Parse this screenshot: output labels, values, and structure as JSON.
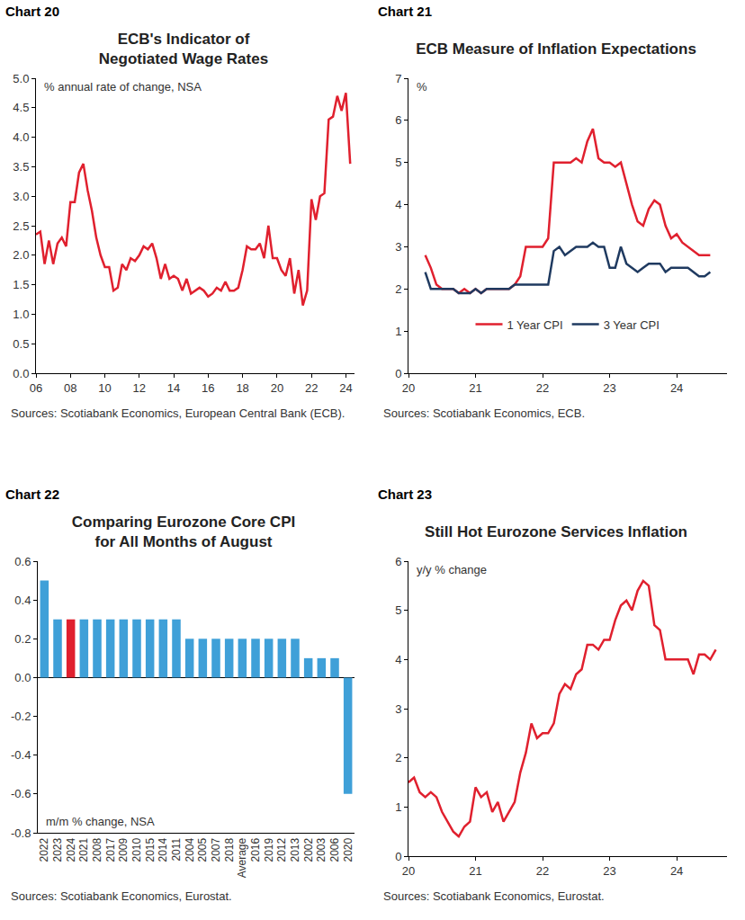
{
  "chart_data": [
    {
      "type": "line",
      "label": "Chart 20",
      "title": "ECB's Indicator of\nNegotiated Wage Rates",
      "ylabel": "% annual rate of change, NSA",
      "source": "Sources: Scotiabank Economics, European Central Bank (ECB).",
      "color": "#e0202e",
      "grid": false,
      "x": [
        2006,
        2006.25,
        2006.5,
        2006.75,
        2007,
        2007.25,
        2007.5,
        2007.75,
        2008,
        2008.25,
        2008.5,
        2008.75,
        2009,
        2009.25,
        2009.5,
        2009.75,
        2010,
        2010.25,
        2010.5,
        2010.75,
        2011,
        2011.25,
        2011.5,
        2011.75,
        2012,
        2012.25,
        2012.5,
        2012.75,
        2013,
        2013.25,
        2013.5,
        2013.75,
        2014,
        2014.25,
        2014.5,
        2014.75,
        2015,
        2015.25,
        2015.5,
        2015.75,
        2016,
        2016.25,
        2016.5,
        2016.75,
        2017,
        2017.25,
        2017.5,
        2017.75,
        2018,
        2018.25,
        2018.5,
        2018.75,
        2019,
        2019.25,
        2019.5,
        2019.75,
        2020,
        2020.25,
        2020.5,
        2020.75,
        2021,
        2021.25,
        2021.5,
        2021.75,
        2022,
        2022.25,
        2022.5,
        2022.75,
        2023,
        2023.25,
        2023.5,
        2023.75,
        2024,
        2024.25
      ],
      "values": [
        2.35,
        2.4,
        1.85,
        2.25,
        1.85,
        2.2,
        2.3,
        2.15,
        2.9,
        2.9,
        3.4,
        3.55,
        3.1,
        2.75,
        2.3,
        2.0,
        1.8,
        1.8,
        1.4,
        1.45,
        1.85,
        1.75,
        1.95,
        1.9,
        2.0,
        2.15,
        2.1,
        2.2,
        1.95,
        1.6,
        1.85,
        1.6,
        1.65,
        1.6,
        1.4,
        1.6,
        1.35,
        1.4,
        1.45,
        1.4,
        1.3,
        1.35,
        1.45,
        1.4,
        1.55,
        1.4,
        1.4,
        1.45,
        1.75,
        2.15,
        2.1,
        2.1,
        2.2,
        1.95,
        2.5,
        1.95,
        1.95,
        1.75,
        1.65,
        1.95,
        1.35,
        1.75,
        1.15,
        1.4,
        2.95,
        2.6,
        3.0,
        3.05,
        4.3,
        4.35,
        4.7,
        4.45,
        4.75,
        3.55
      ],
      "xlim": [
        2006,
        2024.5
      ],
      "xticks": [
        {
          "value": 2006,
          "label": "06"
        },
        {
          "value": 2008,
          "label": "08"
        },
        {
          "value": 2010,
          "label": "10"
        },
        {
          "value": 2012,
          "label": "12"
        },
        {
          "value": 2014,
          "label": "14"
        },
        {
          "value": 2016,
          "label": "16"
        },
        {
          "value": 2018,
          "label": "18"
        },
        {
          "value": 2020,
          "label": "20"
        },
        {
          "value": 2022,
          "label": "22"
        },
        {
          "value": 2024,
          "label": "24"
        }
      ],
      "ylim": [
        0,
        5
      ],
      "yticks": [
        {
          "value": 0,
          "label": "0.0"
        },
        0.5,
        {
          "value": 1,
          "label": "1.0"
        },
        1.5,
        {
          "value": 2,
          "label": "2.0"
        },
        2.5,
        {
          "value": 3,
          "label": "3.0"
        },
        3.5,
        {
          "value": 4,
          "label": "4.0"
        },
        4.5,
        {
          "value": 5,
          "label": "5.0"
        }
      ]
    },
    {
      "type": "line",
      "label": "Chart 21",
      "title": "ECB Measure of Inflation Expectations",
      "ylabel": "%",
      "source": "Sources: Scotiabank Economics, ECB.",
      "grid": false,
      "legend": "bottom",
      "x": [
        2020.25,
        2020.333,
        2020.417,
        2020.5,
        2020.583,
        2020.667,
        2020.75,
        2020.833,
        2020.917,
        2021,
        2021.083,
        2021.167,
        2021.25,
        2021.333,
        2021.417,
        2021.5,
        2021.583,
        2021.667,
        2021.75,
        2021.833,
        2021.917,
        2022,
        2022.083,
        2022.167,
        2022.25,
        2022.333,
        2022.417,
        2022.5,
        2022.583,
        2022.667,
        2022.75,
        2022.833,
        2022.917,
        2023,
        2023.083,
        2023.167,
        2023.25,
        2023.333,
        2023.417,
        2023.5,
        2023.583,
        2023.667,
        2023.75,
        2023.833,
        2023.917,
        2024,
        2024.083,
        2024.167,
        2024.25,
        2024.333,
        2024.417,
        2024.5
      ],
      "series": [
        {
          "name": "1 Year CPI",
          "color": "#e0202e",
          "values": [
            2.8,
            2.5,
            2.1,
            2.0,
            2.0,
            2.0,
            1.9,
            2.0,
            1.9,
            2.0,
            1.9,
            2.0,
            2.0,
            2.0,
            2.0,
            2.0,
            2.1,
            2.3,
            3.0,
            3.0,
            3.0,
            3.0,
            3.2,
            5.0,
            5.0,
            5.0,
            5.0,
            5.1,
            5.0,
            5.5,
            5.8,
            5.1,
            5.0,
            5.0,
            4.9,
            5.0,
            4.5,
            4.0,
            3.6,
            3.5,
            3.9,
            4.1,
            4.0,
            3.5,
            3.2,
            3.3,
            3.1,
            3.0,
            2.9,
            2.8,
            2.8,
            2.8
          ]
        },
        {
          "name": "3 Year CPI",
          "color": "#1f3a60",
          "values": [
            2.4,
            2.0,
            2.0,
            2.0,
            2.0,
            2.0,
            1.9,
            1.9,
            1.9,
            2.0,
            1.9,
            2.0,
            2.0,
            2.0,
            2.0,
            2.0,
            2.1,
            2.1,
            2.1,
            2.1,
            2.1,
            2.1,
            2.1,
            2.9,
            3.0,
            2.8,
            2.9,
            3.0,
            3.0,
            3.0,
            3.1,
            3.0,
            3.0,
            2.5,
            2.5,
            3.0,
            2.6,
            2.5,
            2.4,
            2.5,
            2.6,
            2.6,
            2.6,
            2.4,
            2.5,
            2.5,
            2.5,
            2.5,
            2.4,
            2.3,
            2.3,
            2.4
          ]
        }
      ],
      "xlim": [
        2020,
        2024.75
      ],
      "xticks": [
        {
          "value": 2020,
          "label": "20"
        },
        {
          "value": 2021,
          "label": "21"
        },
        {
          "value": 2022,
          "label": "22"
        },
        {
          "value": 2023,
          "label": "23"
        },
        {
          "value": 2024,
          "label": "24"
        }
      ],
      "ylim": [
        0,
        7
      ],
      "yticks": [
        0,
        1,
        2,
        3,
        4,
        5,
        6,
        7
      ]
    },
    {
      "type": "bar",
      "label": "Chart 22",
      "title": "Comparing Eurozone Core CPI\nfor All Months of August",
      "ylabel": "m/m % change, NSA",
      "source": "Sources: Scotiabank Economics, Eurostat.",
      "grid": false,
      "categories": [
        "2022",
        "2023",
        "2024",
        "2021",
        "2008",
        "2017",
        "2009",
        "2010",
        "2015",
        "2014",
        "2011",
        "2004",
        "2005",
        "2007",
        "2018",
        "Average",
        "2016",
        "2019",
        "2012",
        "2013",
        "2002",
        "2003",
        "2006",
        "2020"
      ],
      "values": [
        0.5,
        0.3,
        0.3,
        0.3,
        0.3,
        0.3,
        0.3,
        0.3,
        0.3,
        0.3,
        0.3,
        0.2,
        0.2,
        0.2,
        0.2,
        0.2,
        0.2,
        0.2,
        0.2,
        0.2,
        0.1,
        0.1,
        0.1,
        -0.6
      ],
      "colors": [
        "#3fa0d8",
        "#3fa0d8",
        "#e0202e",
        "#3fa0d8",
        "#3fa0d8",
        "#3fa0d8",
        "#3fa0d8",
        "#3fa0d8",
        "#3fa0d8",
        "#3fa0d8",
        "#3fa0d8",
        "#3fa0d8",
        "#3fa0d8",
        "#3fa0d8",
        "#3fa0d8",
        "#3fa0d8",
        "#3fa0d8",
        "#3fa0d8",
        "#3fa0d8",
        "#3fa0d8",
        "#3fa0d8",
        "#3fa0d8",
        "#3fa0d8",
        "#3fa0d8"
      ],
      "ylim": [
        -0.8,
        0.6
      ],
      "yticks": [
        -0.8,
        -0.6,
        -0.4,
        -0.2,
        {
          "value": 0,
          "label": "0.0"
        },
        0.2,
        0.4,
        0.6
      ]
    },
    {
      "type": "line",
      "label": "Chart 23",
      "title": "Still Hot Eurozone Services Inflation",
      "ylabel": "y/y % change",
      "source": "Sources: Scotiabank Economics, Eurostat.",
      "color": "#e0202e",
      "grid": false,
      "x": [
        2020,
        2020.083,
        2020.167,
        2020.25,
        2020.333,
        2020.417,
        2020.5,
        2020.583,
        2020.667,
        2020.75,
        2020.833,
        2020.917,
        2021,
        2021.083,
        2021.167,
        2021.25,
        2021.333,
        2021.417,
        2021.5,
        2021.583,
        2021.667,
        2021.75,
        2021.833,
        2021.917,
        2022,
        2022.083,
        2022.167,
        2022.25,
        2022.333,
        2022.417,
        2022.5,
        2022.583,
        2022.667,
        2022.75,
        2022.833,
        2022.917,
        2023,
        2023.083,
        2023.167,
        2023.25,
        2023.333,
        2023.417,
        2023.5,
        2023.583,
        2023.667,
        2023.75,
        2023.833,
        2023.917,
        2024,
        2024.083,
        2024.167,
        2024.25,
        2024.333,
        2024.417,
        2024.5,
        2024.583
      ],
      "values": [
        1.5,
        1.6,
        1.3,
        1.2,
        1.3,
        1.2,
        0.9,
        0.7,
        0.5,
        0.4,
        0.6,
        0.7,
        1.4,
        1.2,
        1.3,
        0.9,
        1.1,
        0.7,
        0.9,
        1.1,
        1.7,
        2.1,
        2.7,
        2.4,
        2.5,
        2.5,
        2.7,
        3.3,
        3.5,
        3.4,
        3.7,
        3.8,
        4.3,
        4.3,
        4.2,
        4.4,
        4.4,
        4.8,
        5.1,
        5.2,
        5.0,
        5.4,
        5.6,
        5.5,
        4.7,
        4.6,
        4.0,
        4.0,
        4.0,
        4.0,
        4.0,
        3.7,
        4.1,
        4.1,
        4.0,
        4.2
      ],
      "xlim": [
        2020,
        2024.75
      ],
      "xticks": [
        {
          "value": 2020,
          "label": "20"
        },
        {
          "value": 2021,
          "label": "21"
        },
        {
          "value": 2022,
          "label": "22"
        },
        {
          "value": 2023,
          "label": "23"
        },
        {
          "value": 2024,
          "label": "24"
        }
      ],
      "ylim": [
        0,
        6
      ],
      "yticks": [
        0,
        1,
        2,
        3,
        4,
        5,
        6
      ]
    }
  ]
}
